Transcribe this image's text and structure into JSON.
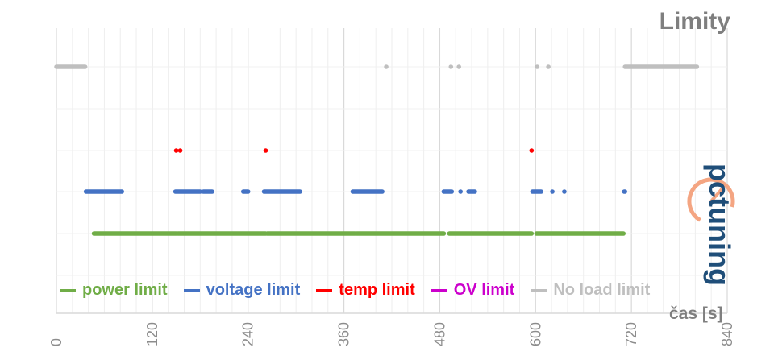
{
  "chart_data": {
    "type": "scatter",
    "title": "Limity",
    "xlabel": "čas [s]",
    "xlim": [
      0,
      840
    ],
    "x_ticks": [
      "0",
      "120",
      "240",
      "360",
      "480",
      "600",
      "720",
      "840"
    ],
    "grid": true,
    "legend_position": "bottom",
    "series": [
      {
        "name": "power limit",
        "color": "#70ad47",
        "level": 1,
        "segments": [
          [
            47,
            150
          ],
          [
            152,
            262
          ],
          [
            264,
            374
          ],
          [
            376,
            485
          ],
          [
            492,
            595
          ],
          [
            601,
            710
          ]
        ],
        "points": []
      },
      {
        "name": "voltage limit",
        "color": "#4472c4",
        "level": 2,
        "segments": [
          [
            37,
            82
          ],
          [
            149,
            180
          ],
          [
            184,
            195
          ],
          [
            234,
            240
          ],
          [
            260,
            305
          ],
          [
            371,
            408
          ],
          [
            485,
            495
          ],
          [
            516,
            524
          ],
          [
            596,
            607
          ],
          [
            711,
            712
          ]
        ],
        "points": [
          506,
          621,
          636
        ]
      },
      {
        "name": "temp limit",
        "color": "#ff0000",
        "level": 3,
        "segments": [],
        "points": [
          150,
          155,
          262,
          595
        ]
      },
      {
        "name": "OV limit",
        "color": "#cc00cc",
        "level": 4,
        "segments": [],
        "points": []
      },
      {
        "name": "No load limit",
        "color": "#bfbfbf",
        "level": 5,
        "segments": [
          [
            0,
            36
          ],
          [
            712,
            802
          ]
        ],
        "points": [
          413,
          494,
          504,
          602,
          616
        ]
      }
    ]
  },
  "logo_text": "pctuning"
}
